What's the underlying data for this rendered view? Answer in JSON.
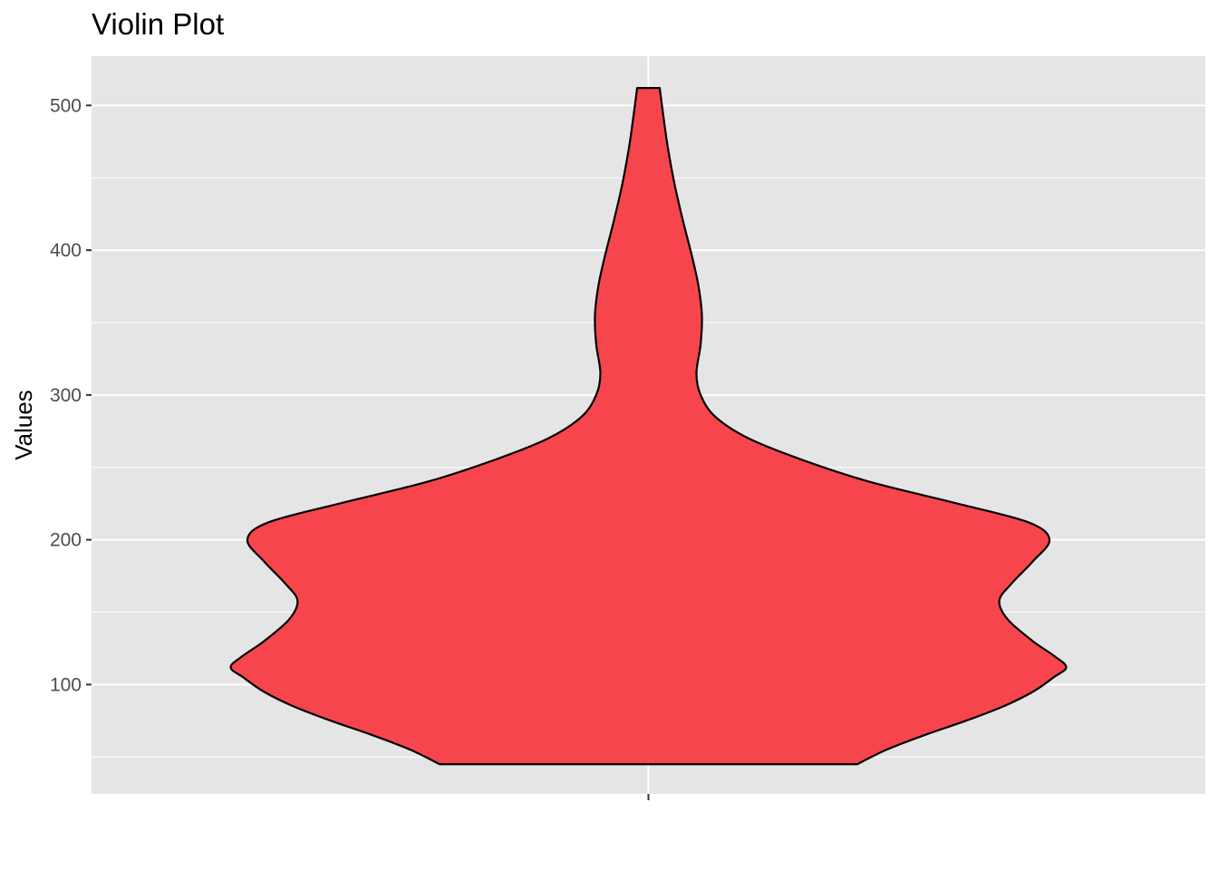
{
  "chart_data": {
    "type": "violin",
    "title": "Violin Plot",
    "xlabel": "",
    "ylabel": "Values",
    "ylim": [
      24.5,
      534
    ],
    "y_ticks": [
      100,
      200,
      300,
      400,
      500
    ],
    "x_categories": [
      ""
    ],
    "grid": true,
    "legend": "none",
    "series": [
      {
        "fill_color": "#f8333c",
        "fill_opacity": 0.9,
        "outline_color": "#000000",
        "y_min": 45,
        "y_max": 512,
        "density_profile": [
          {
            "y": 45,
            "density": 0.5
          },
          {
            "y": 55,
            "density": 0.57
          },
          {
            "y": 65,
            "density": 0.66
          },
          {
            "y": 75,
            "density": 0.76
          },
          {
            "y": 85,
            "density": 0.85
          },
          {
            "y": 95,
            "density": 0.92
          },
          {
            "y": 105,
            "density": 0.97
          },
          {
            "y": 112,
            "density": 1.0
          },
          {
            "y": 120,
            "density": 0.97
          },
          {
            "y": 130,
            "density": 0.92
          },
          {
            "y": 145,
            "density": 0.86
          },
          {
            "y": 158,
            "density": 0.84
          },
          {
            "y": 170,
            "density": 0.87
          },
          {
            "y": 185,
            "density": 0.92
          },
          {
            "y": 200,
            "density": 0.96
          },
          {
            "y": 212,
            "density": 0.91
          },
          {
            "y": 225,
            "density": 0.74
          },
          {
            "y": 240,
            "density": 0.53
          },
          {
            "y": 255,
            "density": 0.37
          },
          {
            "y": 270,
            "density": 0.24
          },
          {
            "y": 285,
            "density": 0.16
          },
          {
            "y": 300,
            "density": 0.125
          },
          {
            "y": 315,
            "density": 0.115
          },
          {
            "y": 335,
            "density": 0.125
          },
          {
            "y": 355,
            "density": 0.128
          },
          {
            "y": 375,
            "density": 0.12
          },
          {
            "y": 395,
            "density": 0.105
          },
          {
            "y": 420,
            "density": 0.083
          },
          {
            "y": 445,
            "density": 0.063
          },
          {
            "y": 470,
            "density": 0.047
          },
          {
            "y": 490,
            "density": 0.037
          },
          {
            "y": 512,
            "density": 0.027
          }
        ]
      }
    ]
  }
}
